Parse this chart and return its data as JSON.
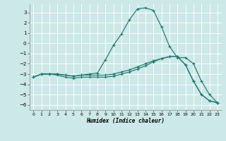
{
  "xlabel": "Humidex (Indice chaleur)",
  "bg_color": "#cce8e8",
  "grid_color": "#ffffff",
  "line_color": "#1a7a6e",
  "xlim": [
    -0.5,
    23.5
  ],
  "ylim": [
    -6.5,
    3.8
  ],
  "yticks": [
    3,
    2,
    1,
    0,
    -1,
    -2,
    -3,
    -4,
    -5,
    -6
  ],
  "xticks": [
    0,
    1,
    2,
    3,
    4,
    5,
    6,
    7,
    8,
    9,
    10,
    11,
    12,
    13,
    14,
    15,
    16,
    17,
    18,
    19,
    20,
    21,
    22,
    23
  ],
  "line1_x": [
    0,
    1,
    2,
    3,
    4,
    5,
    6,
    7,
    8,
    9,
    10,
    11,
    12,
    13,
    14,
    15,
    16,
    17,
    18,
    19,
    20,
    21,
    22,
    23
  ],
  "line1_y": [
    -3.3,
    -3.0,
    -3.0,
    -3.0,
    -3.1,
    -3.2,
    -3.1,
    -3.0,
    -2.9,
    -1.6,
    -0.2,
    0.9,
    2.3,
    3.35,
    3.45,
    3.2,
    1.6,
    -0.3,
    -1.4,
    -1.4,
    -2.0,
    -3.7,
    -5.0,
    -5.8
  ],
  "line2_x": [
    0,
    1,
    2,
    3,
    4,
    5,
    6,
    7,
    8,
    9,
    10,
    11,
    12,
    13,
    14,
    15,
    16,
    17,
    18,
    19,
    20,
    21,
    22,
    23
  ],
  "line2_y": [
    -3.3,
    -3.0,
    -3.0,
    -3.0,
    -3.1,
    -3.2,
    -3.1,
    -3.1,
    -3.1,
    -3.1,
    -3.0,
    -2.8,
    -2.6,
    -2.3,
    -2.0,
    -1.7,
    -1.5,
    -1.3,
    -1.3,
    -2.1,
    -3.7,
    -5.0,
    -5.6,
    -5.8
  ],
  "line3_x": [
    0,
    1,
    2,
    3,
    4,
    5,
    6,
    7,
    8,
    9,
    10,
    11,
    12,
    13,
    14,
    15,
    16,
    17,
    18,
    19,
    20,
    21,
    22,
    23
  ],
  "line3_y": [
    -3.3,
    -3.0,
    -3.0,
    -3.1,
    -3.3,
    -3.4,
    -3.3,
    -3.3,
    -3.3,
    -3.3,
    -3.2,
    -3.0,
    -2.8,
    -2.5,
    -2.2,
    -1.8,
    -1.5,
    -1.3,
    -1.3,
    -2.1,
    -3.7,
    -5.0,
    -5.6,
    -5.8
  ]
}
